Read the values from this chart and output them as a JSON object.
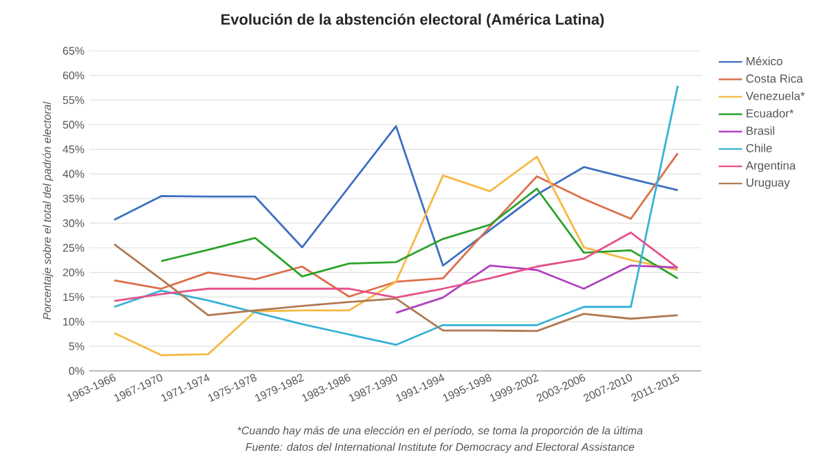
{
  "chart_data": {
    "type": "line",
    "title": "Evolución de la abstención electoral (América Latina)",
    "ylabel": "Porcentaje sobre el total del padrón electoral",
    "categories": [
      "1963-1966",
      "1967-1970",
      "1971-1974",
      "1975-1978",
      "1979-1982",
      "1983-1986",
      "1987-1990",
      "1991-1994",
      "1995-1998",
      "1999-2002",
      "2003-2006",
      "2007-2010",
      "2011-2015"
    ],
    "series": [
      {
        "name": "México",
        "color": "#3d6fc1",
        "values": [
          30.7,
          35.5,
          35.4,
          35.4,
          25.1,
          37.4,
          49.7,
          21.4,
          28.6,
          35.8,
          41.4,
          39.0,
          36.7
        ]
      },
      {
        "name": "Costa Rica",
        "color": "#dc6e4a",
        "values": [
          18.4,
          16.7,
          20.0,
          18.6,
          21.2,
          15.1,
          18.1,
          18.8,
          29.3,
          39.5,
          34.9,
          30.9,
          44.2
        ]
      },
      {
        "name": "Venezuela*",
        "color": "#f5b942",
        "values": [
          7.7,
          3.2,
          3.4,
          12.1,
          12.3,
          12.3,
          18.1,
          39.7,
          36.5,
          43.5,
          25.1,
          22.5,
          20.5
        ]
      },
      {
        "name": "Ecuador*",
        "color": "#2aa22a",
        "values": [
          null,
          22.3,
          24.6,
          27.0,
          19.2,
          21.8,
          22.1,
          26.8,
          29.7,
          37.0,
          24.0,
          24.5,
          18.8
        ]
      },
      {
        "name": "Brasil",
        "color": "#b040c0",
        "values": [
          null,
          null,
          null,
          null,
          null,
          null,
          11.8,
          14.9,
          21.4,
          20.5,
          16.7,
          21.4,
          21.0
        ]
      },
      {
        "name": "Chile",
        "color": "#35b2d5",
        "values": [
          13.0,
          16.3,
          14.3,
          11.9,
          9.5,
          7.4,
          5.3,
          9.3,
          9.3,
          9.3,
          13.0,
          13.0,
          57.9
        ]
      },
      {
        "name": "Argentina",
        "color": "#e6508a",
        "values": [
          14.2,
          15.6,
          16.7,
          16.7,
          16.7,
          16.7,
          14.9,
          16.7,
          18.8,
          21.2,
          22.8,
          28.1,
          20.9
        ]
      },
      {
        "name": "Uruguay",
        "color": "#b07850",
        "values": [
          25.7,
          18.6,
          11.3,
          12.3,
          13.2,
          14.0,
          14.7,
          8.2,
          8.2,
          8.1,
          11.6,
          10.6,
          11.3
        ]
      }
    ],
    "ylim": [
      0,
      65
    ],
    "yticks": [
      {
        "value": 0,
        "label": "0%"
      },
      {
        "value": 5,
        "label": "5%"
      },
      {
        "value": 10,
        "label": "10%"
      },
      {
        "value": 15,
        "label": "15%"
      },
      {
        "value": 20,
        "label": "20%"
      },
      {
        "value": 25,
        "label": "25%"
      },
      {
        "value": 30,
        "label": "30%"
      },
      {
        "value": 35,
        "label": "35%"
      },
      {
        "value": 40,
        "label": "40%"
      },
      {
        "value": 45,
        "label": "45%"
      },
      {
        "value": 50,
        "label": "50%"
      },
      {
        "value": 55,
        "label": "55%"
      },
      {
        "value": 60,
        "label": "60%"
      },
      {
        "value": 65,
        "label": "65%"
      }
    ],
    "grid": "y",
    "legend": "right",
    "marker": "none",
    "line_style": "solid",
    "annotations": [
      "*Cuando hay más de una elección en el período, se toma la proporción de la última",
      "Fuente: datos del International Institute for Democracy and Electoral Assistance"
    ]
  }
}
